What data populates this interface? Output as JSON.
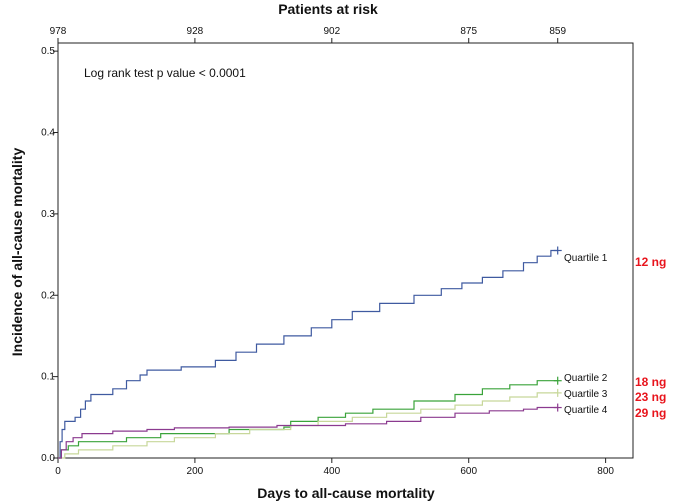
{
  "chart_data": {
    "type": "line",
    "step": true,
    "title": "Patients at risk",
    "xlabel": "Days to all-cause mortality",
    "ylabel": "Incidence of all-cause mortality",
    "xlim": [
      0,
      840
    ],
    "ylim": [
      0,
      0.51
    ],
    "x_ticks": [
      0,
      200,
      400,
      600,
      800
    ],
    "x_tick_labels": [
      "0",
      "200",
      "400",
      "600",
      "800"
    ],
    "y_ticks": [
      0.0,
      0.1,
      0.2,
      0.3,
      0.4,
      0.5
    ],
    "y_tick_labels": [
      "0.0",
      "0.1",
      "0.2",
      "0.3",
      "0.4",
      "0.5"
    ],
    "at_risk": [
      {
        "x": 0,
        "label": "978"
      },
      {
        "x": 200,
        "label": "928"
      },
      {
        "x": 400,
        "label": "902"
      },
      {
        "x": 600,
        "label": "875"
      },
      {
        "x": 730,
        "label": "859"
      }
    ],
    "annotation": "Log rank test p value < 0.0001",
    "series": [
      {
        "name": "Quartile 1",
        "dose": "12 ng",
        "color": "#3f5aa0",
        "points": [
          [
            0,
            0
          ],
          [
            3,
            0.02
          ],
          [
            6,
            0.035
          ],
          [
            10,
            0.045
          ],
          [
            25,
            0.05
          ],
          [
            33,
            0.06
          ],
          [
            40,
            0.07
          ],
          [
            48,
            0.078
          ],
          [
            80,
            0.085
          ],
          [
            100,
            0.095
          ],
          [
            120,
            0.102
          ],
          [
            130,
            0.108
          ],
          [
            180,
            0.112
          ],
          [
            230,
            0.12
          ],
          [
            260,
            0.13
          ],
          [
            290,
            0.14
          ],
          [
            330,
            0.15
          ],
          [
            370,
            0.16
          ],
          [
            400,
            0.17
          ],
          [
            430,
            0.18
          ],
          [
            470,
            0.19
          ],
          [
            520,
            0.2
          ],
          [
            560,
            0.208
          ],
          [
            590,
            0.215
          ],
          [
            620,
            0.222
          ],
          [
            650,
            0.23
          ],
          [
            680,
            0.24
          ],
          [
            700,
            0.248
          ],
          [
            720,
            0.255
          ],
          [
            730,
            0.255
          ]
        ]
      },
      {
        "name": "Quartile 2",
        "dose": "18 ng",
        "color": "#3aa33a",
        "points": [
          [
            0,
            0
          ],
          [
            5,
            0.01
          ],
          [
            15,
            0.015
          ],
          [
            30,
            0.02
          ],
          [
            100,
            0.025
          ],
          [
            150,
            0.03
          ],
          [
            250,
            0.035
          ],
          [
            330,
            0.038
          ],
          [
            340,
            0.045
          ],
          [
            380,
            0.05
          ],
          [
            420,
            0.055
          ],
          [
            460,
            0.06
          ],
          [
            520,
            0.07
          ],
          [
            580,
            0.078
          ],
          [
            620,
            0.085
          ],
          [
            660,
            0.09
          ],
          [
            700,
            0.095
          ],
          [
            730,
            0.095
          ]
        ]
      },
      {
        "name": "Quartile 3",
        "dose": "23 ng",
        "color": "#c7d79a",
        "points": [
          [
            0,
            0
          ],
          [
            10,
            0.005
          ],
          [
            30,
            0.01
          ],
          [
            80,
            0.015
          ],
          [
            130,
            0.02
          ],
          [
            170,
            0.025
          ],
          [
            230,
            0.03
          ],
          [
            280,
            0.035
          ],
          [
            340,
            0.04
          ],
          [
            380,
            0.045
          ],
          [
            430,
            0.05
          ],
          [
            480,
            0.055
          ],
          [
            530,
            0.06
          ],
          [
            580,
            0.065
          ],
          [
            620,
            0.07
          ],
          [
            660,
            0.075
          ],
          [
            700,
            0.08
          ],
          [
            730,
            0.08
          ]
        ]
      },
      {
        "name": "Quartile 4",
        "dose": "29 ng",
        "color": "#8b3a8f",
        "points": [
          [
            0,
            0
          ],
          [
            5,
            0.01
          ],
          [
            12,
            0.02
          ],
          [
            22,
            0.025
          ],
          [
            35,
            0.03
          ],
          [
            80,
            0.033
          ],
          [
            130,
            0.035
          ],
          [
            170,
            0.037
          ],
          [
            250,
            0.038
          ],
          [
            320,
            0.04
          ],
          [
            420,
            0.042
          ],
          [
            480,
            0.045
          ],
          [
            530,
            0.05
          ],
          [
            580,
            0.055
          ],
          [
            630,
            0.058
          ],
          [
            680,
            0.06
          ],
          [
            700,
            0.062
          ],
          [
            730,
            0.062
          ]
        ]
      }
    ]
  }
}
